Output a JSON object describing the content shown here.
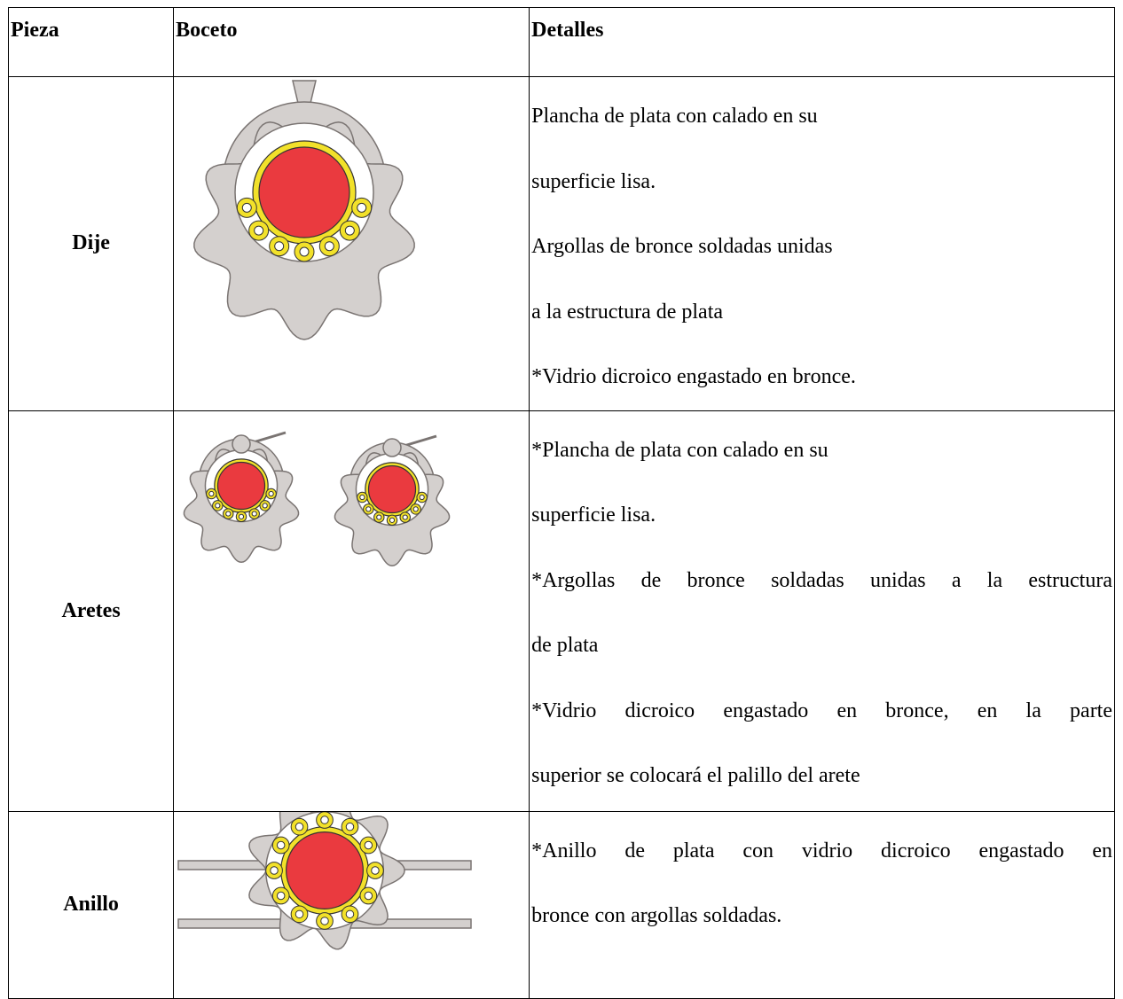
{
  "table": {
    "header": [
      "Pieza",
      "Boceto",
      "Detalles"
    ],
    "rows": [
      {
        "piece": "Dije",
        "details": [
          "Plancha de plata con calado en su",
          "superficie lisa.",
          "Argollas de bronce soldadas unidas",
          "a la estructura de plata",
          "*Vidrio dicroico engastado en bronce."
        ]
      },
      {
        "piece": "Aretes",
        "details": [
          "*Plancha de plata con calado en su",
          "superficie lisa.",
          "*Argollas de bronce soldadas unidas a la estructura",
          "de plata",
          "*Vidrio dicroico engastado en bronce, en la parte",
          "superior se colocará el palillo del arete"
        ]
      },
      {
        "piece": "Anillo",
        "details": [
          "*Anillo de plata con vidrio dicroico engastado en",
          "bronce con argollas soldadas."
        ]
      }
    ]
  }
}
